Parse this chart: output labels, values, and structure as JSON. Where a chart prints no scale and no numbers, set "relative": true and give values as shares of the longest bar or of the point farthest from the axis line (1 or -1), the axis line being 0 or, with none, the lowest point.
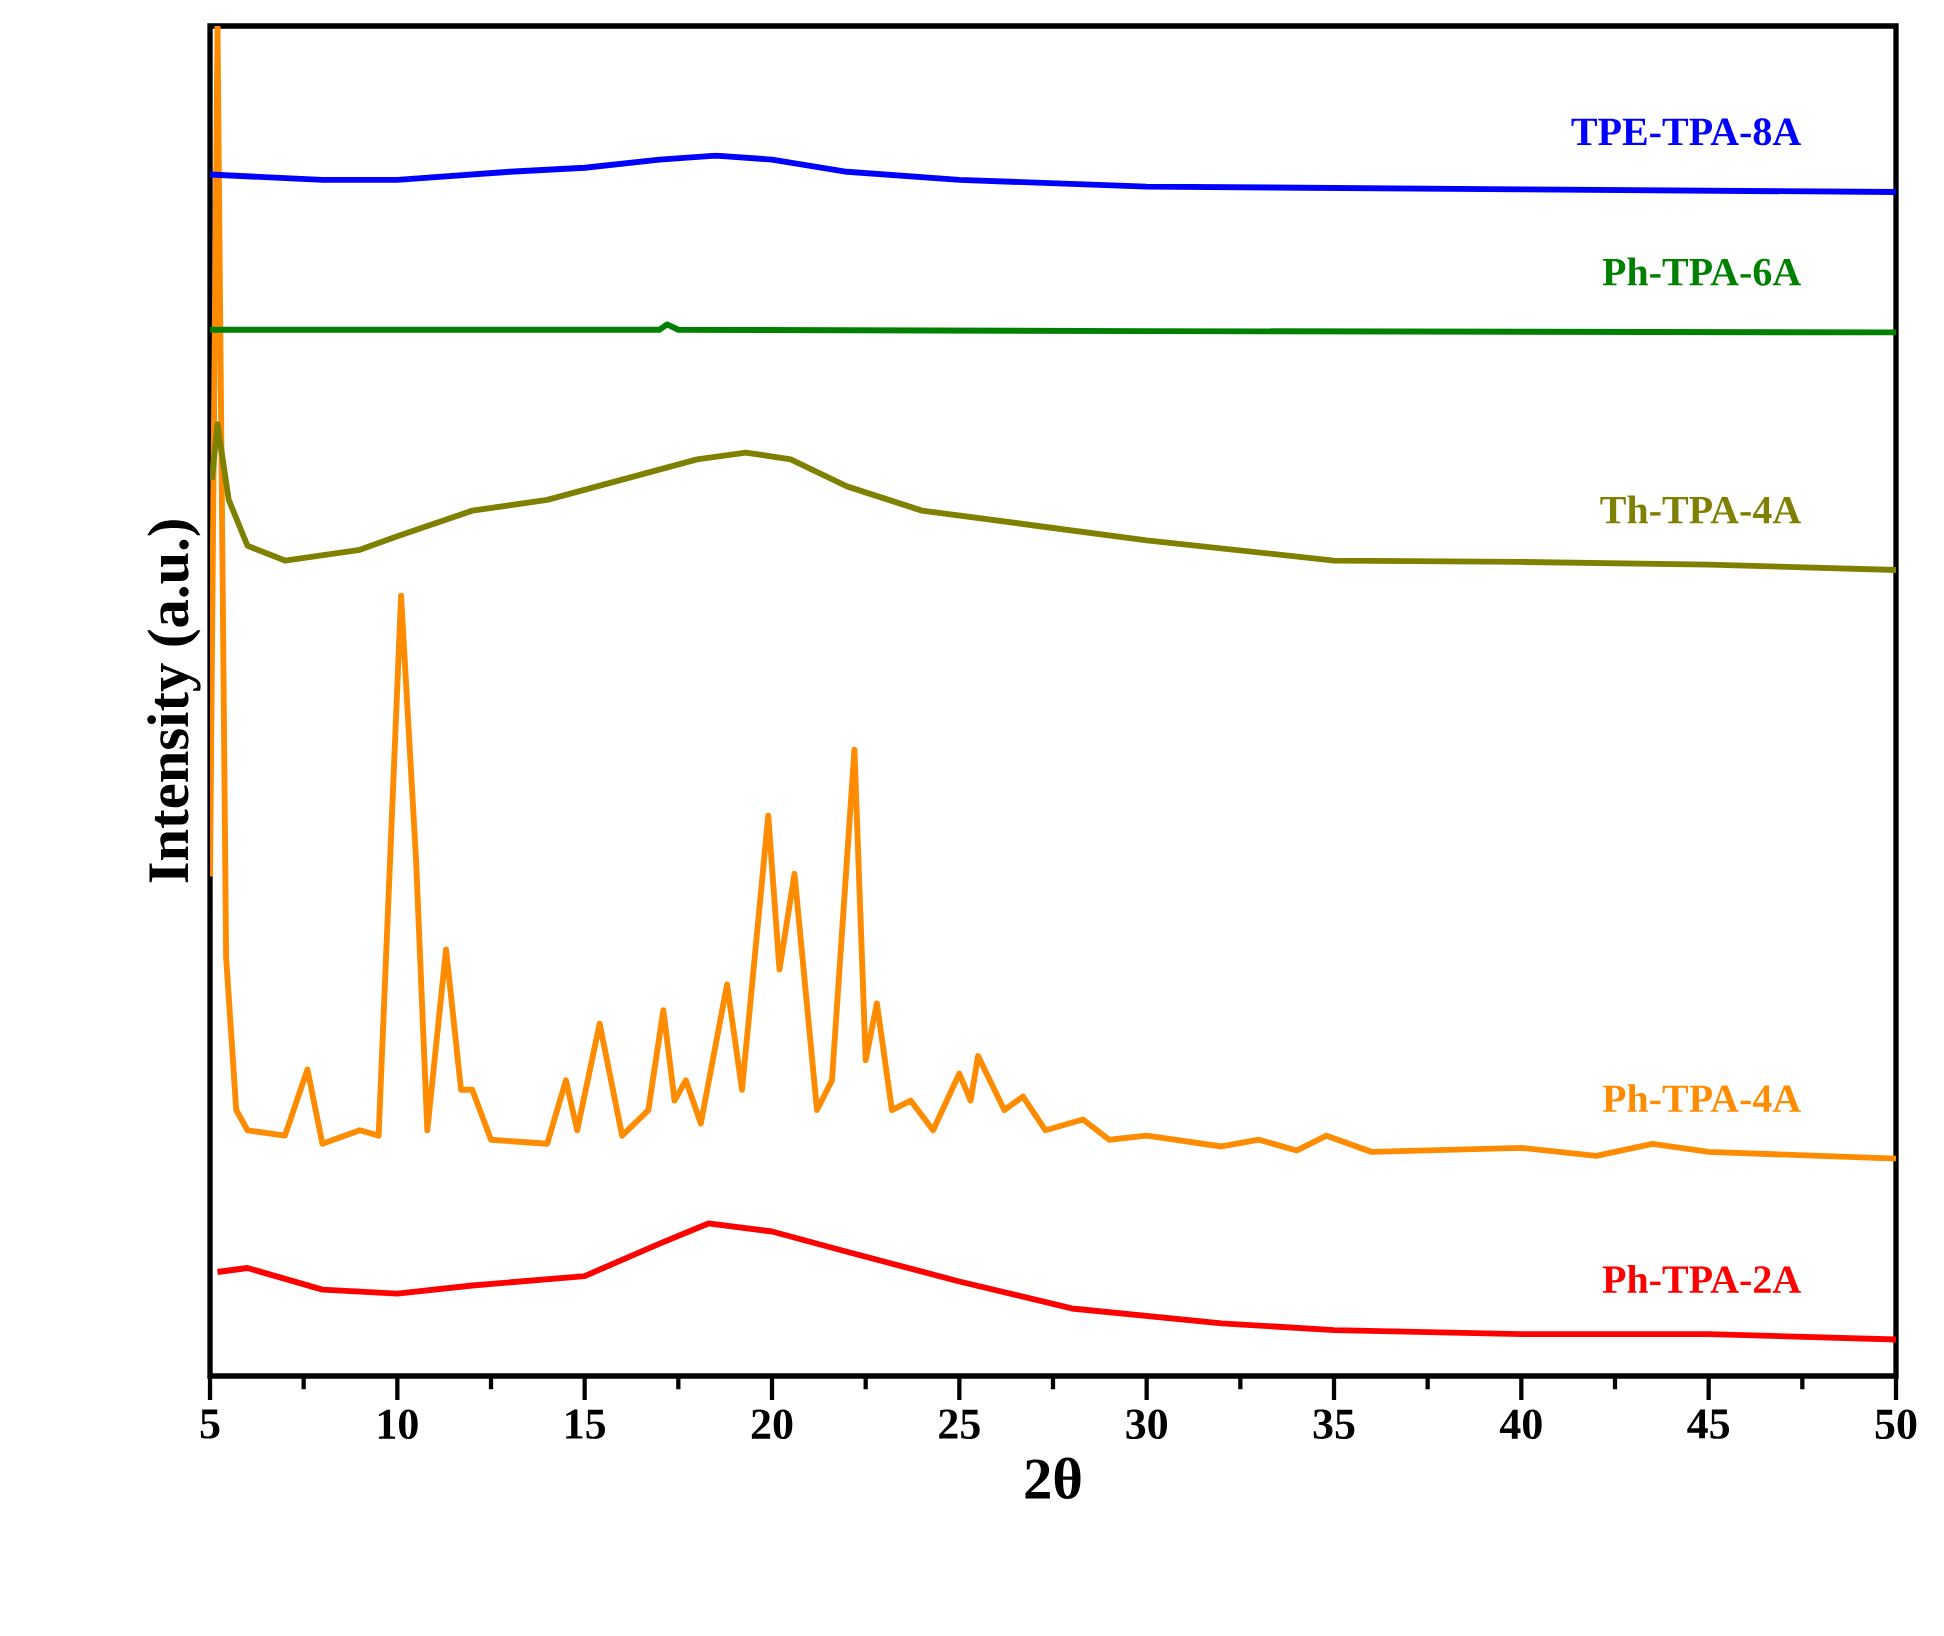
{
  "chart_data": {
    "type": "line",
    "relative": true,
    "xlabel": "2θ",
    "ylabel": "Intensity (a.u.)",
    "xlim": [
      5,
      50
    ],
    "xticks": [
      5,
      10,
      15,
      20,
      25,
      30,
      35,
      40,
      45,
      50
    ],
    "legend": false,
    "grid": false,
    "marker": "none",
    "line_style": "solid",
    "series": [
      {
        "name": "Ph-TPA-2A",
        "color": "#ff0000",
        "x": [
          5.2,
          6,
          8,
          10,
          12,
          15,
          17,
          18.3,
          20,
          22,
          25,
          28,
          32,
          35,
          40,
          45,
          50
        ],
        "values": [
          0.077,
          0.08,
          0.064,
          0.061,
          0.067,
          0.074,
          0.098,
          0.113,
          0.107,
          0.092,
          0.07,
          0.05,
          0.039,
          0.034,
          0.031,
          0.031,
          0.027
        ]
      },
      {
        "name": "Ph-TPA-4A",
        "color": "#ff8c00",
        "x": [
          5.0,
          5.2,
          5.43,
          5.7,
          6,
          7,
          7.6,
          8,
          9,
          9.5,
          10.1,
          10.5,
          10.8,
          11.3,
          11.7,
          12,
          12.5,
          14,
          14.5,
          14.8,
          15.4,
          16,
          16.7,
          17.1,
          17.4,
          17.7,
          18.1,
          18.8,
          19.2,
          19.9,
          20.2,
          20.6,
          21.2,
          21.6,
          22.2,
          22.5,
          22.8,
          23.2,
          23.7,
          24.3,
          25,
          25.3,
          25.5,
          26.2,
          26.7,
          27.3,
          28.3,
          29,
          30,
          32,
          33,
          34,
          34.8,
          36,
          40,
          42,
          43.5,
          45,
          50
        ],
        "values": [
          0.37,
          1,
          0.31,
          0.197,
          0.182,
          0.178,
          0.227,
          0.172,
          0.182,
          0.178,
          0.578,
          0.382,
          0.182,
          0.316,
          0.212,
          0.212,
          0.175,
          0.172,
          0.219,
          0.182,
          0.261,
          0.178,
          0.197,
          0.271,
          0.204,
          0.219,
          0.187,
          0.29,
          0.212,
          0.415,
          0.301,
          0.372,
          0.197,
          0.219,
          0.464,
          0.234,
          0.276,
          0.197,
          0.204,
          0.182,
          0.224,
          0.204,
          0.237,
          0.197,
          0.207,
          0.182,
          0.19,
          0.175,
          0.178,
          0.17,
          0.175,
          0.167,
          0.178,
          0.166,
          0.169,
          0.163,
          0.172,
          0.166,
          0.161
        ]
      },
      {
        "name": "Th-TPA-4A",
        "color": "#808000",
        "x": [
          5.05,
          5.2,
          5.5,
          6,
          7,
          9,
          10,
          12,
          14,
          16,
          18,
          19.3,
          20.5,
          22,
          24,
          27,
          30,
          35,
          40,
          45,
          50
        ],
        "values": [
          0.664,
          0.705,
          0.649,
          0.615,
          0.604,
          0.612,
          0.622,
          0.641,
          0.649,
          0.664,
          0.679,
          0.684,
          0.679,
          0.659,
          0.641,
          0.63,
          0.619,
          0.604,
          0.603,
          0.601,
          0.597
        ]
      },
      {
        "name": "Ph-TPA-6A",
        "color": "#008000",
        "x": [
          5,
          10,
          17,
          17.2,
          17.5,
          30,
          50
        ],
        "values": [
          0.775,
          0.775,
          0.775,
          0.779,
          0.775,
          0.774,
          0.773
        ]
      },
      {
        "name": "TPE-TPA-8A",
        "color": "#0000ff",
        "x": [
          5,
          8,
          10,
          13,
          15,
          17,
          18.5,
          20,
          22,
          25,
          30,
          40,
          50
        ],
        "values": [
          0.89,
          0.886,
          0.886,
          0.892,
          0.895,
          0.901,
          0.904,
          0.901,
          0.892,
          0.886,
          0.881,
          0.879,
          0.877
        ]
      }
    ]
  }
}
